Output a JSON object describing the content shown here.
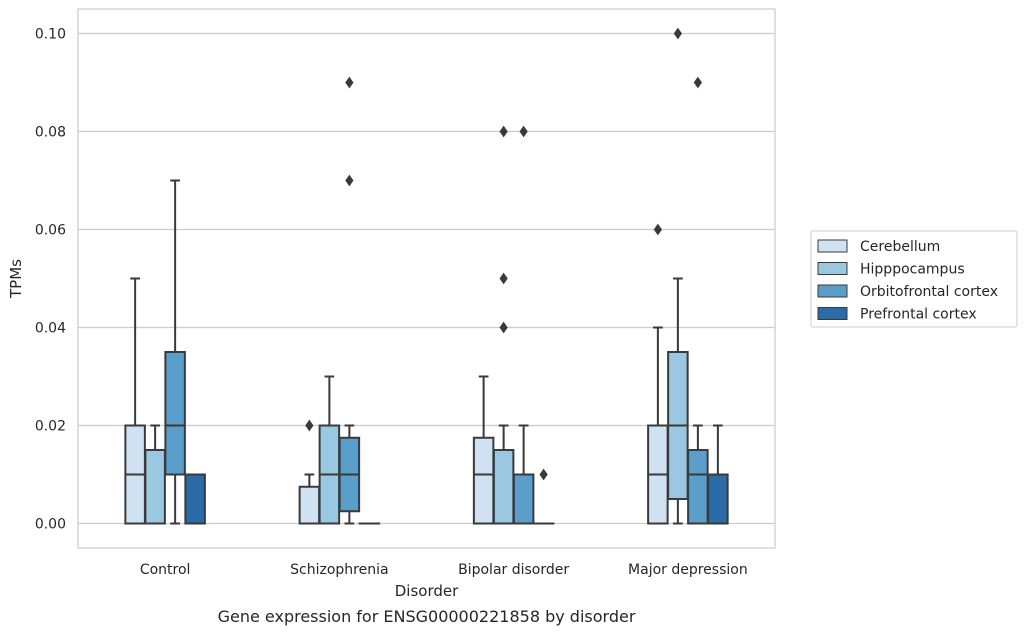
{
  "chart_data": {
    "type": "box",
    "title": "",
    "caption": "Gene expression for ENSG00000221858 by disorder",
    "xlabel": "Disorder",
    "ylabel": "TPMs",
    "ylim": [
      -0.005,
      0.105
    ],
    "yticks": [
      0.0,
      0.02,
      0.04,
      0.06,
      0.08,
      0.1
    ],
    "ytick_labels": [
      "0.00",
      "0.02",
      "0.04",
      "0.06",
      "0.08",
      "0.10"
    ],
    "grid": "horizontal",
    "legend_position": "right",
    "categories": [
      "Control",
      "Schizophrenia",
      "Bipolar disorder",
      "Major depression"
    ],
    "series": [
      {
        "name": "Cerebellum",
        "color": "#d0e1f2",
        "boxes": [
          {
            "whislo": 0.0,
            "q1": 0.0,
            "med": 0.01,
            "q3": 0.02,
            "whishi": 0.05,
            "fliers": []
          },
          {
            "whislo": 0.0,
            "q1": 0.0,
            "med": 0.0,
            "q3": 0.0075,
            "whishi": 0.01,
            "fliers": [
              0.02
            ]
          },
          {
            "whislo": 0.0,
            "q1": 0.0,
            "med": 0.01,
            "q3": 0.0175,
            "whishi": 0.03,
            "fliers": []
          },
          {
            "whislo": 0.0,
            "q1": 0.0,
            "med": 0.01,
            "q3": 0.02,
            "whishi": 0.04,
            "fliers": [
              0.06
            ]
          }
        ]
      },
      {
        "name": "Hipppocampus",
        "color": "#9ac8e0",
        "boxes": [
          {
            "whislo": 0.0,
            "q1": 0.0,
            "med": 0.0,
            "q3": 0.015,
            "whishi": 0.02,
            "fliers": []
          },
          {
            "whislo": 0.0,
            "q1": 0.0,
            "med": 0.01,
            "q3": 0.02,
            "whishi": 0.03,
            "fliers": []
          },
          {
            "whislo": 0.0,
            "q1": 0.0,
            "med": 0.0,
            "q3": 0.015,
            "whishi": 0.02,
            "fliers": [
              0.04,
              0.05,
              0.08
            ]
          },
          {
            "whislo": 0.0,
            "q1": 0.005,
            "med": 0.02,
            "q3": 0.035,
            "whishi": 0.05,
            "fliers": [
              0.1
            ]
          }
        ]
      },
      {
        "name": "Orbitofrontal cortex",
        "color": "#5a9ec9",
        "boxes": [
          {
            "whislo": 0.0,
            "q1": 0.01,
            "med": 0.02,
            "q3": 0.035,
            "whishi": 0.07,
            "fliers": []
          },
          {
            "whislo": 0.0,
            "q1": 0.0025,
            "med": 0.01,
            "q3": 0.0175,
            "whishi": 0.02,
            "fliers": [
              0.07,
              0.09
            ]
          },
          {
            "whislo": 0.0,
            "q1": 0.0,
            "med": 0.0,
            "q3": 0.01,
            "whishi": 0.02,
            "fliers": [
              0.08
            ]
          },
          {
            "whislo": 0.0,
            "q1": 0.0,
            "med": 0.01,
            "q3": 0.015,
            "whishi": 0.02,
            "fliers": [
              0.09
            ]
          }
        ]
      },
      {
        "name": "Prefrontal cortex",
        "color": "#2b6ba8",
        "boxes": [
          {
            "whislo": 0.0,
            "q1": 0.0,
            "med": 0.0,
            "q3": 0.01,
            "whishi": 0.01,
            "fliers": []
          },
          {
            "whislo": 0.0,
            "q1": 0.0,
            "med": 0.0,
            "q3": 0.0,
            "whishi": 0.0,
            "fliers": []
          },
          {
            "whislo": 0.0,
            "q1": 0.0,
            "med": 0.0,
            "q3": 0.0,
            "whishi": 0.0,
            "fliers": [
              0.01
            ]
          },
          {
            "whislo": 0.0,
            "q1": 0.0,
            "med": 0.0,
            "q3": 0.01,
            "whishi": 0.02,
            "fliers": []
          }
        ]
      }
    ]
  }
}
